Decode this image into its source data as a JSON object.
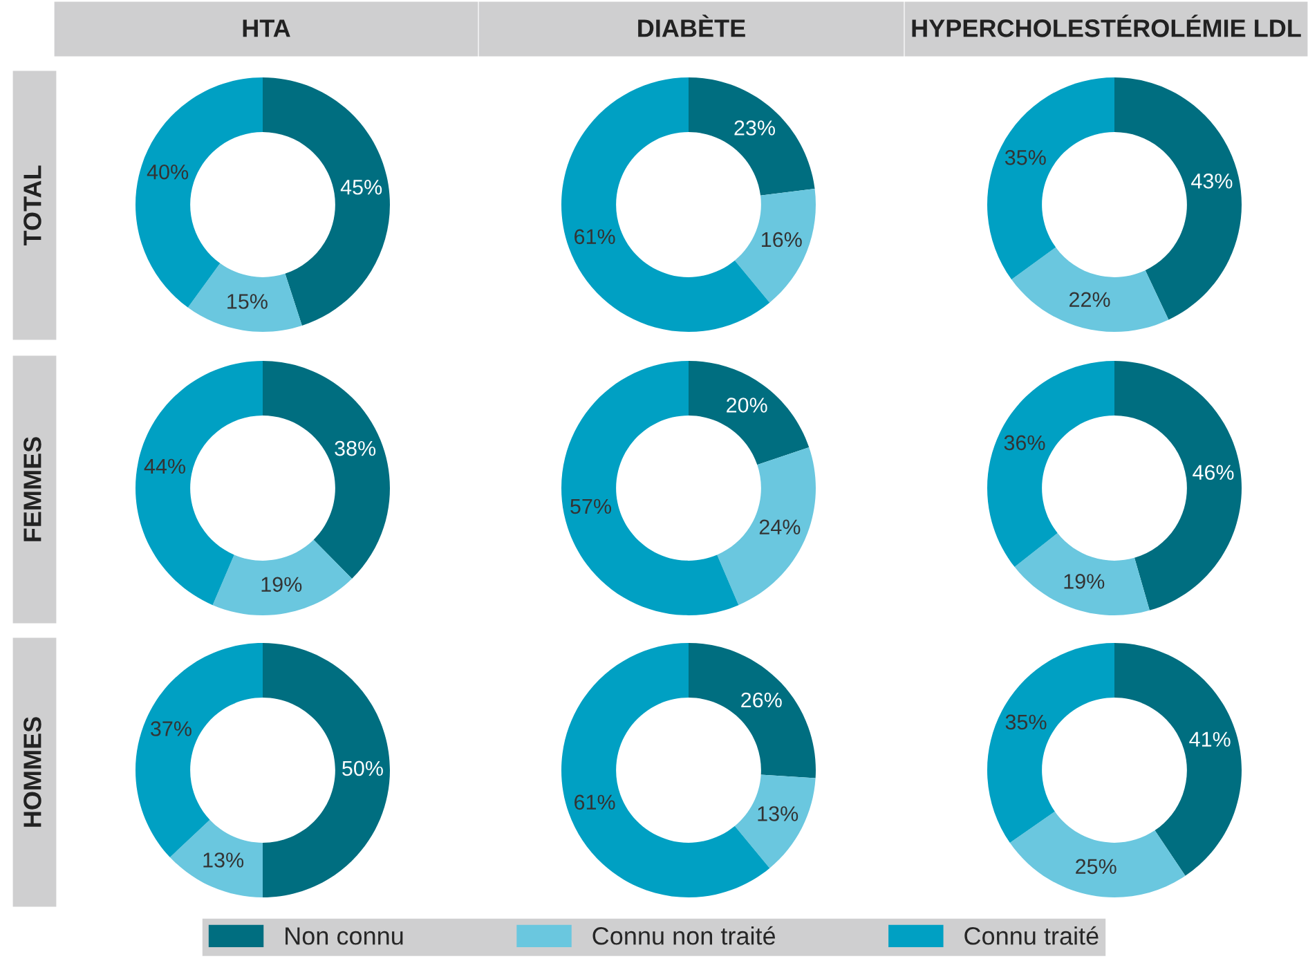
{
  "chart_data": [
    {
      "type": "donut",
      "title": "HTA",
      "ylabel": "TOTAL",
      "categories": [
        "Non connu",
        "Connu non traité",
        "Connu traité"
      ],
      "values": [
        45,
        15,
        40
      ],
      "value_labels": [
        "45%",
        "15%",
        "40%"
      ],
      "colors": [
        "#006e80",
        "#6ac7df",
        "#00a0c3"
      ],
      "legend": "bottom"
    },
    {
      "type": "donut",
      "title": "DIABÈTE",
      "categories": [
        null,
        null,
        null
      ],
      "values": [
        23,
        16,
        61
      ],
      "value_labels": [
        "23%",
        "16%",
        "61%"
      ],
      "colors": [
        "#006e80",
        "#6ac7df",
        "#00a0c3"
      ]
    },
    {
      "type": "donut",
      "title": "HYPERCHOLESTÉROLÉMIE LDL",
      "categories": [
        null,
        null,
        null
      ],
      "values": [
        43,
        22,
        35
      ],
      "value_labels": [
        "43%",
        "22%",
        "35%"
      ],
      "colors": [
        "#006e80",
        "#6ac7df",
        "#00a0c3"
      ]
    },
    {
      "type": "donut",
      "ylabel": "FEMMES",
      "categories": [
        null,
        null,
        null
      ],
      "values": [
        38,
        19,
        44
      ],
      "value_labels": [
        "38%",
        "19%",
        "44%"
      ],
      "colors": [
        "#006e80",
        "#6ac7df",
        "#00a0c3"
      ]
    },
    {
      "type": "donut",
      "categories": [
        null,
        null,
        null
      ],
      "values": [
        20,
        24,
        57
      ],
      "value_labels": [
        "20%",
        "24%",
        "57%"
      ],
      "colors": [
        "#006e80",
        "#6ac7df",
        "#00a0c3"
      ]
    },
    {
      "type": "donut",
      "categories": [
        null,
        null,
        null
      ],
      "values": [
        46,
        19,
        36
      ],
      "value_labels": [
        "46%",
        "19%",
        "36%"
      ],
      "colors": [
        "#006e80",
        "#6ac7df",
        "#00a0c3"
      ]
    },
    {
      "type": "donut",
      "ylabel": "HOMMES",
      "categories": [
        null,
        null,
        null
      ],
      "values": [
        50,
        13,
        37
      ],
      "value_labels": [
        "50%",
        "13%",
        "37%"
      ],
      "colors": [
        "#006e80",
        "#6ac7df",
        "#00a0c3"
      ]
    },
    {
      "type": "donut",
      "categories": [
        null,
        null,
        null
      ],
      "values": [
        26,
        13,
        61
      ],
      "value_labels": [
        "26%",
        "13%",
        "61%"
      ],
      "colors": [
        "#006e80",
        "#6ac7df",
        "#00a0c3"
      ]
    },
    {
      "type": "donut",
      "categories": [
        null,
        null,
        null
      ],
      "values": [
        41,
        25,
        35
      ],
      "value_labels": [
        "41%",
        "25%",
        "35%"
      ],
      "colors": [
        "#006e80",
        "#6ac7df",
        "#00a0c3"
      ]
    }
  ]
}
